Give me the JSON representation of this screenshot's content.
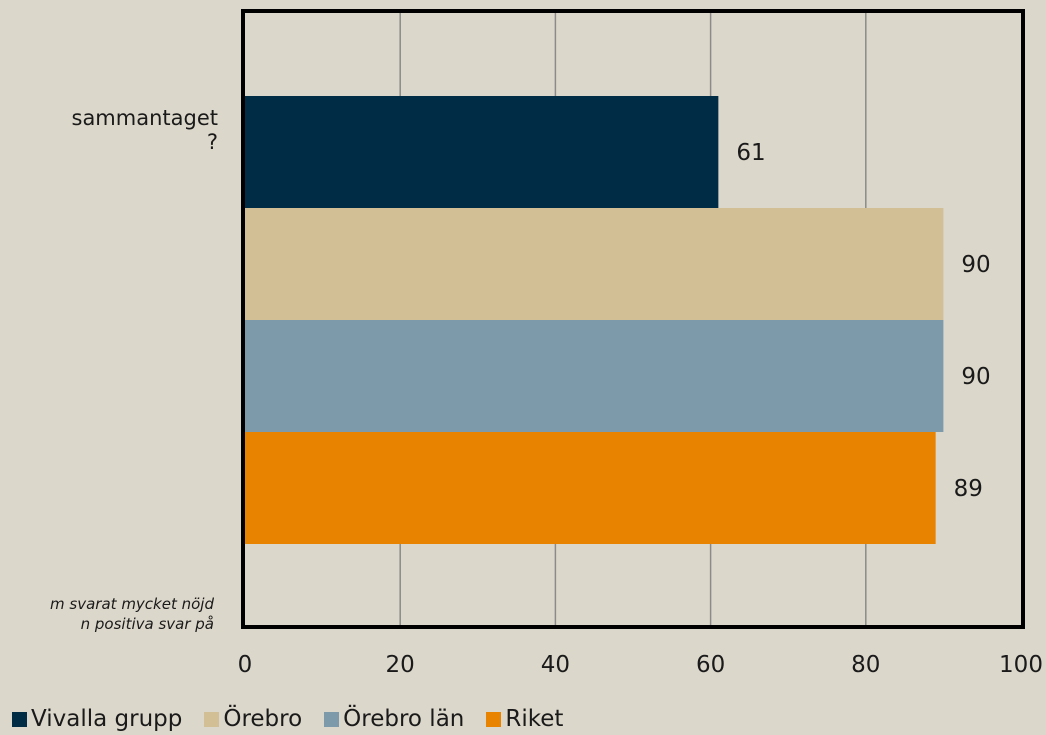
{
  "question_fragment": "sammantaget\n?",
  "note_fragment": "m svarat mycket nöjd\nn positiva svar på",
  "chart_data": {
    "type": "bar",
    "orientation": "horizontal",
    "categories": [
      ""
    ],
    "series": [
      {
        "name": "Vivalla grupp",
        "values": [
          61
        ],
        "color": "#002d45"
      },
      {
        "name": "Örebro",
        "values": [
          90
        ],
        "color": "#d3bf96"
      },
      {
        "name": "Örebro län",
        "values": [
          90
        ],
        "color": "#7d9aab"
      },
      {
        "name": "Riket",
        "values": [
          89
        ],
        "color": "#e88300"
      }
    ],
    "data_labels": [
      "61",
      "90",
      "90",
      "89"
    ],
    "x_ticks": [
      "0",
      "20",
      "40",
      "60",
      "80",
      "100"
    ],
    "xlim": [
      0,
      100
    ],
    "grid": "vertical",
    "legend_position": "bottom-left",
    "title": "",
    "xlabel": "",
    "ylabel": ""
  }
}
